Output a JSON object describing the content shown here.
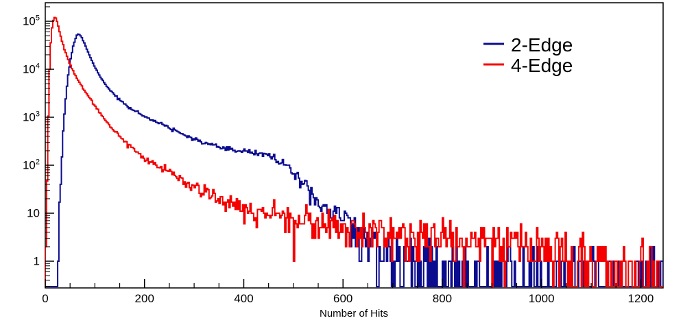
{
  "figure": {
    "background": "#ffffff",
    "axis_color": "#000000"
  },
  "chart_data": {
    "type": "line",
    "title": "",
    "xlabel": "Number of Hits",
    "ylabel": "",
    "x_major_ticks": [
      0,
      200,
      400,
      600,
      800,
      1000,
      1200
    ],
    "x_minor_step": 50,
    "xlim": [
      0,
      1245
    ],
    "y_scale": "log",
    "y_major_ticks": [
      1,
      10,
      100,
      1000,
      10000,
      100000
    ],
    "y_minor_pattern": "2-9 each decade",
    "ylim": [
      0.28,
      240000
    ],
    "grid": false,
    "legend": {
      "position": "top-right",
      "items": [
        {
          "label": "2-Edge",
          "color": "#0c0c8f"
        },
        {
          "label": "4-Edge",
          "color": "#f40000"
        }
      ]
    },
    "series": [
      {
        "name": "2-Edge",
        "color": "#0c0c8f",
        "seed": 1337,
        "bin_width": 2.5,
        "anchors": [
          [
            24,
            0.35
          ],
          [
            28,
            8
          ],
          [
            32,
            80
          ],
          [
            36,
            450
          ],
          [
            40,
            1800
          ],
          [
            45,
            6000
          ],
          [
            50,
            14000
          ],
          [
            55,
            26000
          ],
          [
            60,
            42000
          ],
          [
            65,
            55000
          ],
          [
            70,
            52500
          ],
          [
            75,
            43000
          ],
          [
            80,
            33000
          ],
          [
            90,
            18500
          ],
          [
            100,
            11000
          ],
          [
            110,
            7200
          ],
          [
            120,
            5000
          ],
          [
            135,
            3300
          ],
          [
            150,
            2300
          ],
          [
            170,
            1580
          ],
          [
            200,
            1060
          ],
          [
            230,
            750
          ],
          [
            260,
            535
          ],
          [
            300,
            345
          ],
          [
            330,
            268
          ],
          [
            360,
            222
          ],
          [
            390,
            197
          ],
          [
            420,
            186
          ],
          [
            450,
            162
          ],
          [
            470,
            126
          ],
          [
            490,
            89
          ],
          [
            510,
            57
          ],
          [
            530,
            35
          ],
          [
            550,
            21
          ],
          [
            570,
            13.5
          ],
          [
            590,
            9
          ],
          [
            610,
            6.5
          ],
          [
            630,
            4.5
          ],
          [
            650,
            3.2
          ],
          [
            680,
            2.1
          ],
          [
            720,
            1.3
          ],
          [
            780,
            0.8
          ],
          [
            850,
            0.55
          ],
          [
            950,
            0.45
          ],
          [
            1100,
            0.4
          ],
          [
            1245,
            0.33
          ]
        ]
      },
      {
        "name": "4-Edge",
        "color": "#f40000",
        "seed": 904,
        "bin_width": 2.5,
        "anchors": [
          [
            1,
            0.3
          ],
          [
            3,
            9
          ],
          [
            5,
            250
          ],
          [
            7,
            2500
          ],
          [
            9,
            12000
          ],
          [
            12,
            50000
          ],
          [
            15,
            95000
          ],
          [
            18,
            118000
          ],
          [
            21,
            118000
          ],
          [
            25,
            90000
          ],
          [
            29,
            60000
          ],
          [
            34,
            38000
          ],
          [
            40,
            23500
          ],
          [
            47,
            15000
          ],
          [
            55,
            9600
          ],
          [
            65,
            6100
          ],
          [
            75,
            4200
          ],
          [
            85,
            2900
          ],
          [
            95,
            2050
          ],
          [
            105,
            1450
          ],
          [
            120,
            900
          ],
          [
            135,
            580
          ],
          [
            150,
            390
          ],
          [
            170,
            252
          ],
          [
            200,
            142
          ],
          [
            230,
            93
          ],
          [
            260,
            62
          ],
          [
            300,
            37
          ],
          [
            340,
            23.5
          ],
          [
            380,
            16
          ],
          [
            420,
            12
          ],
          [
            460,
            9.5
          ],
          [
            500,
            7.5
          ],
          [
            550,
            5.8
          ],
          [
            600,
            4.8
          ],
          [
            650,
            4.4
          ],
          [
            700,
            4.0
          ],
          [
            750,
            3.6
          ],
          [
            800,
            3.2
          ],
          [
            850,
            2.9
          ],
          [
            900,
            2.6
          ],
          [
            950,
            2.3
          ],
          [
            1000,
            2.0
          ],
          [
            1050,
            1.6
          ],
          [
            1100,
            1.1
          ],
          [
            1150,
            0.65
          ],
          [
            1200,
            0.38
          ],
          [
            1245,
            0.3
          ]
        ]
      }
    ]
  }
}
